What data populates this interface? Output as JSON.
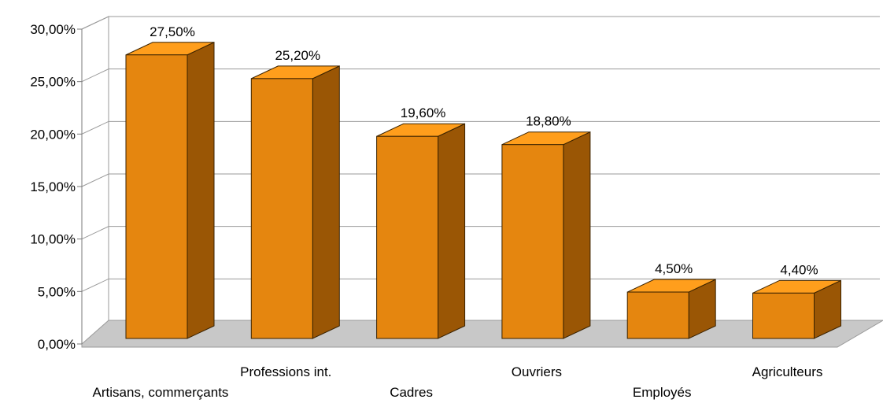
{
  "chart_data": {
    "type": "bar",
    "categories": [
      "Artisans, commerçants",
      "Professions int.",
      "Cadres",
      "Ouvriers",
      "Employés",
      "Agriculteurs"
    ],
    "values": [
      27.5,
      25.2,
      19.6,
      18.8,
      4.5,
      4.4
    ],
    "data_labels": [
      "27,50%",
      "25,20%",
      "19,60%",
      "18,80%",
      "4,50%",
      "4,40%"
    ],
    "y_ticks": [
      "0,00%",
      "5,00%",
      "10,00%",
      "15,00%",
      "20,00%",
      "25,00%",
      "30,00%"
    ],
    "ylim": [
      0,
      30
    ],
    "grid": true,
    "legend": "none",
    "style": "3d",
    "colors": {
      "front": "#e5860f",
      "side": "#9a5605",
      "top": "#ff9e1c",
      "floor": "#c8c8c8"
    }
  }
}
